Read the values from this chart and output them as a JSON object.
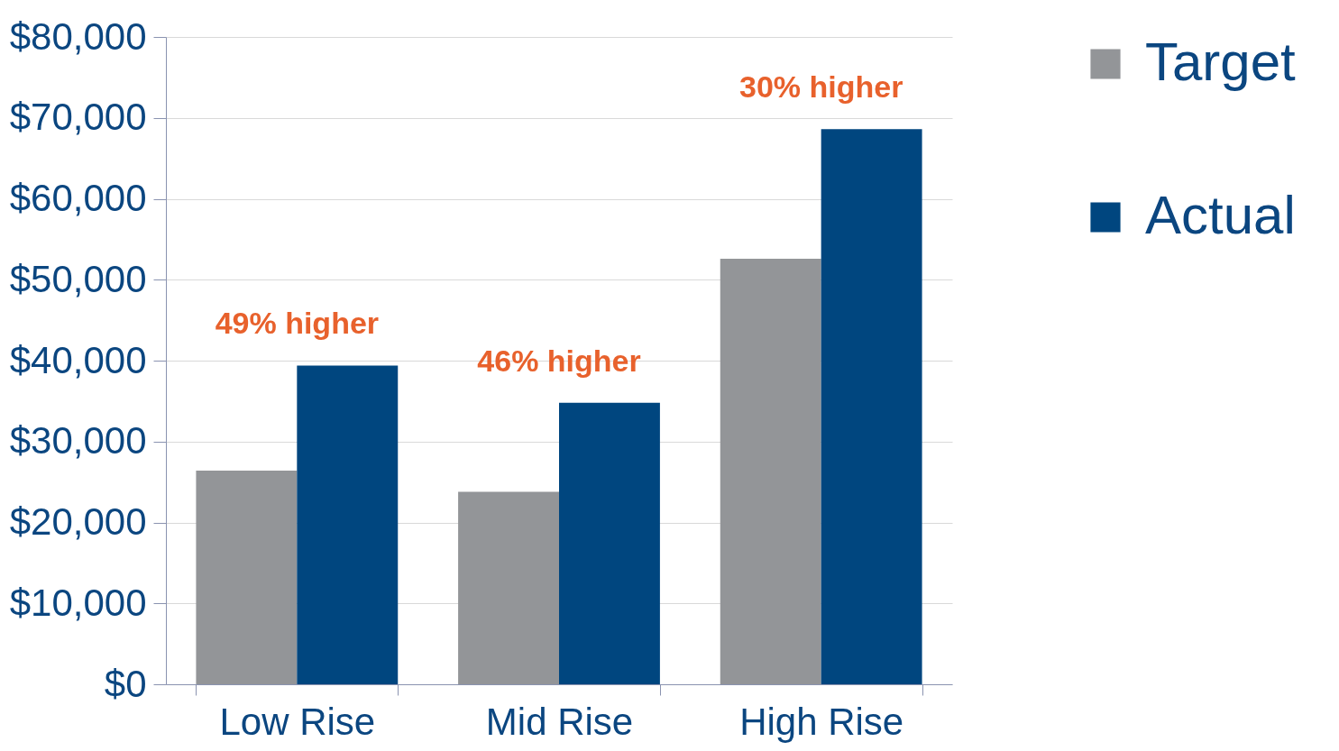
{
  "chart_data": {
    "type": "bar",
    "categories": [
      "Low Rise",
      "Mid Rise",
      "High Rise"
    ],
    "series": [
      {
        "name": "Target",
        "color": "#939598",
        "values": [
          26400,
          23800,
          52600
        ]
      },
      {
        "name": "Actual",
        "color": "#00467f",
        "values": [
          39400,
          34800,
          68600
        ]
      }
    ],
    "ylim": [
      0,
      80000
    ],
    "yticks": [
      {
        "value": 0,
        "label": "$0"
      },
      {
        "value": 10000,
        "label": "$10,000"
      },
      {
        "value": 20000,
        "label": "$20,000"
      },
      {
        "value": 30000,
        "label": "$30,000"
      },
      {
        "value": 40000,
        "label": "$40,000"
      },
      {
        "value": 50000,
        "label": "$50,000"
      },
      {
        "value": 60000,
        "label": "$60,000"
      },
      {
        "value": 70000,
        "label": "$70,000"
      },
      {
        "value": 80000,
        "label": "$80,000"
      }
    ],
    "annotations": [
      {
        "text": "49% higher",
        "x": "Low Rise",
        "y": 39400
      },
      {
        "text": "46% higher",
        "x": "Mid Rise",
        "y": 34800
      },
      {
        "text": "30% higher",
        "x": "High Rise",
        "y": 68600
      }
    ],
    "grid": "y",
    "legend": "right"
  }
}
